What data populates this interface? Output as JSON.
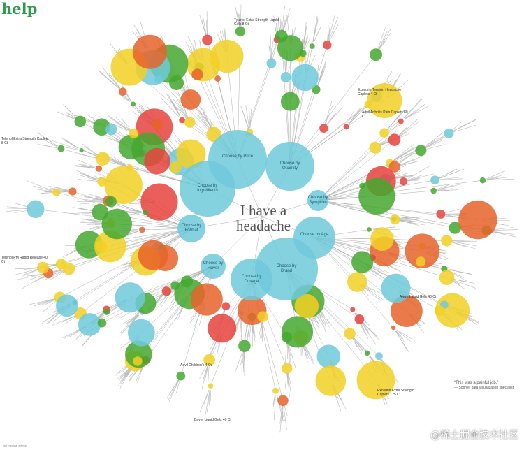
{
  "header": {
    "title": "help"
  },
  "center": {
    "label": "I have a headache"
  },
  "hubs": [
    {
      "label": "Choose by Price"
    },
    {
      "label": "Choose by Quantity"
    },
    {
      "label": "Choose by Ingredients"
    },
    {
      "label": "Choose by Symptom"
    },
    {
      "label": "Choose by Format"
    },
    {
      "label": "Choose by Age"
    },
    {
      "label": "Choose by Brand"
    },
    {
      "label": "Choose by Dosage"
    },
    {
      "label": "Choose by Flavor"
    }
  ],
  "products": [
    {
      "label": "Tylenol Extra Strength Liquid Gels 8 Ct"
    },
    {
      "label": "Tylenol Extra Strength Caplets 8 Ct"
    },
    {
      "label": "Tylenol PM Rapid Release 40 Ct"
    },
    {
      "label": "Excedrin Tension Headache Caplets 4 Ct"
    },
    {
      "label": "Advil Arthritis Pain Caplets 80 Ct"
    },
    {
      "label": "Aleve Liquid Gels 40 Ct"
    },
    {
      "label": "Advil Children's 4 Oz"
    },
    {
      "label": "Excedrin Extra Strength Caplets 125 Ct"
    },
    {
      "label": "Bayer Liquid Gels 40 Ct"
    }
  ],
  "note": {
    "quote": "“This was a painful job.”",
    "author": "— Sophie, data visualization specialist"
  },
  "footer": {
    "text": "Not medical advice"
  },
  "watermark": {
    "text": "@稀土掘金技术社区"
  }
}
